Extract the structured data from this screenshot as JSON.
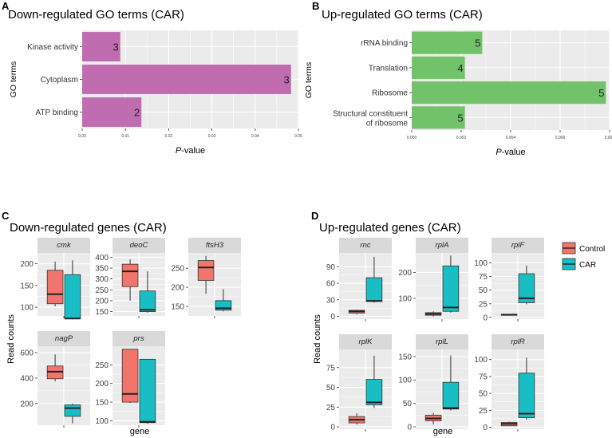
{
  "colors": {
    "purple": "#c06cb1",
    "green": "#72c26a",
    "control": "#f2756b",
    "car": "#18bec3",
    "panel_bg": "#ebebeb",
    "strip_bg": "#d9d9d9",
    "grid": "#ffffff"
  },
  "legend": {
    "entries": [
      {
        "name": "Control",
        "color": "#f2756b"
      },
      {
        "name": "CAR",
        "color": "#18bec3"
      }
    ]
  },
  "chart_data": [
    {
      "id": "A",
      "type": "bar",
      "orientation": "horizontal",
      "panel_label": "A",
      "title": "Down-regulated GO terms (CAR)",
      "ylabel": "GO terms",
      "xlabel_prefix": "P",
      "xlabel_suffix": "-value",
      "categories": [
        "Kinase activity",
        "Cytoplasm",
        "ATP binding"
      ],
      "values": [
        0.0088,
        0.0483,
        0.0137
      ],
      "labels": [
        "3",
        "3",
        "2"
      ],
      "xlim": [
        0,
        0.05
      ],
      "xticks": [
        0,
        0.01,
        0.02,
        0.03,
        0.04,
        0.05
      ],
      "xticklabels": [
        "0.00",
        "0.01",
        "0.02",
        "0.03",
        "0.04",
        "0.05"
      ],
      "color": "#c06cb1"
    },
    {
      "id": "B",
      "type": "bar",
      "orientation": "horizontal",
      "panel_label": "B",
      "title": "Up-regulated GO terms (CAR)",
      "ylabel": "GO terms",
      "xlabel_prefix": "P",
      "xlabel_suffix": "-value",
      "categories": [
        "rRNA binding",
        "Translation",
        "Ribosome",
        "Structural constituent of ribosome"
      ],
      "category_lines": [
        [
          "rRNA binding"
        ],
        [
          "Translation"
        ],
        [
          "Ribosome"
        ],
        [
          "Structural constituent",
          "of ribosome"
        ]
      ],
      "values": [
        0.00285,
        0.00215,
        0.00785,
        0.00215
      ],
      "labels": [
        "5",
        "4",
        "5",
        "5"
      ],
      "xlim": [
        0,
        0.008
      ],
      "xticks": [
        0,
        0.002,
        0.004,
        0.006,
        0.008
      ],
      "xticklabels": [
        "0.000",
        "0.002",
        "0.004",
        "0.006",
        "0.008"
      ],
      "color": "#72c26a"
    },
    {
      "id": "C",
      "type": "boxplot",
      "panel_label": "C",
      "title": "Down-regulated genes (CAR)",
      "ylabel": "Read counts",
      "xlabel": "gene",
      "series": [
        "Control",
        "CAR"
      ],
      "facets": [
        {
          "gene": "cmk",
          "ylim": [
            80,
            225
          ],
          "yticks": [
            100,
            150,
            200
          ],
          "boxes": [
            {
              "series": "Control",
              "min": 102,
              "q1": 108,
              "median": 130,
              "q3": 185,
              "max": 205
            },
            {
              "series": "CAR",
              "min": 72,
              "q1": 74,
              "median": 74,
              "q3": 175,
              "max": 208
            }
          ]
        },
        {
          "gene": "deoC",
          "ylim": [
            130,
            420
          ],
          "yticks": [
            150,
            200,
            250,
            300,
            350,
            400
          ],
          "boxes": [
            {
              "series": "Control",
              "min": 200,
              "q1": 265,
              "median": 335,
              "q3": 368,
              "max": 390
            },
            {
              "series": "CAR",
              "min": 145,
              "q1": 150,
              "median": 158,
              "q3": 245,
              "max": 335
            }
          ]
        },
        {
          "gene": "ftsH3",
          "ylim": [
            125,
            290
          ],
          "yticks": [
            150,
            200,
            250
          ],
          "boxes": [
            {
              "series": "Control",
              "min": 183,
              "q1": 218,
              "median": 252,
              "q3": 270,
              "max": 282
            },
            {
              "series": "CAR",
              "min": 137,
              "q1": 140,
              "median": 145,
              "q3": 165,
              "max": 195
            }
          ]
        },
        {
          "gene": "nagP",
          "ylim": [
            30,
            650
          ],
          "yticks": [
            200,
            400,
            600
          ],
          "boxes": [
            {
              "series": "Control",
              "min": 375,
              "q1": 395,
              "median": 450,
              "q3": 495,
              "max": 585
            },
            {
              "series": "CAR",
              "min": 45,
              "q1": 100,
              "median": 165,
              "q3": 190,
              "max": 200
            }
          ]
        },
        {
          "gene": "prs",
          "ylim": [
            88,
            300
          ],
          "yticks": [
            100,
            150,
            200,
            250
          ],
          "boxes": [
            {
              "series": "Control",
              "min": 148,
              "q1": 150,
              "median": 172,
              "q3": 292,
              "max": 292
            },
            {
              "series": "CAR",
              "min": 92,
              "q1": 95,
              "median": 97,
              "q3": 265,
              "max": 265
            }
          ]
        }
      ]
    },
    {
      "id": "D",
      "type": "boxplot",
      "panel_label": "D",
      "title": "Up-regulated genes (CAR)",
      "ylabel": "Read counts",
      "xlabel": "gene",
      "series": [
        "Control",
        "CAR"
      ],
      "facets": [
        {
          "gene": "rnc",
          "ylim": [
            -5,
            115
          ],
          "yticks": [
            0,
            30,
            60,
            90
          ],
          "boxes": [
            {
              "series": "Control",
              "min": 4,
              "q1": 6,
              "median": 9,
              "q3": 11,
              "max": 12
            },
            {
              "series": "CAR",
              "min": 25,
              "q1": 27,
              "median": 28,
              "q3": 70,
              "max": 108
            }
          ]
        },
        {
          "gene": "rplA",
          "ylim": [
            20,
            275
          ],
          "yticks": [
            100,
            200
          ],
          "boxes": [
            {
              "series": "Control",
              "min": 30,
              "q1": 35,
              "median": 40,
              "q3": 45,
              "max": 50
            },
            {
              "series": "CAR",
              "min": 45,
              "q1": 50,
              "median": 65,
              "q3": 225,
              "max": 265
            }
          ]
        },
        {
          "gene": "rplF",
          "ylim": [
            -3,
            118
          ],
          "yticks": [
            0,
            25,
            50,
            75,
            100
          ],
          "boxes": [
            {
              "series": "Control",
              "min": 4,
              "q1": 4,
              "median": 5,
              "q3": 6,
              "max": 6
            },
            {
              "series": "CAR",
              "min": 24,
              "q1": 27,
              "median": 35,
              "q3": 80,
              "max": 95
            }
          ]
        },
        {
          "gene": "rplK",
          "ylim": [
            -3,
            98
          ],
          "yticks": [
            0,
            25,
            50,
            75
          ],
          "boxes": [
            {
              "series": "Control",
              "min": 3,
              "q1": 5,
              "median": 9,
              "q3": 13,
              "max": 17
            },
            {
              "series": "CAR",
              "min": 24,
              "q1": 28,
              "median": 31,
              "q3": 60,
              "max": 90
            }
          ]
        },
        {
          "gene": "rplL",
          "ylim": [
            -5,
            165
          ],
          "yticks": [
            0,
            50,
            100,
            150
          ],
          "boxes": [
            {
              "series": "Control",
              "min": 5,
              "q1": 13,
              "median": 18,
              "q3": 25,
              "max": 30
            },
            {
              "series": "CAR",
              "min": 35,
              "q1": 38,
              "median": 40,
              "q3": 95,
              "max": 152
            }
          ]
        },
        {
          "gene": "rplR",
          "ylim": [
            -3,
            115
          ],
          "yticks": [
            0,
            25,
            50,
            75,
            100
          ],
          "boxes": [
            {
              "series": "Control",
              "min": 2,
              "q1": 2,
              "median": 5,
              "q3": 7,
              "max": 8
            },
            {
              "series": "CAR",
              "min": 11,
              "q1": 14,
              "median": 20,
              "q3": 80,
              "max": 103
            }
          ]
        }
      ]
    }
  ]
}
